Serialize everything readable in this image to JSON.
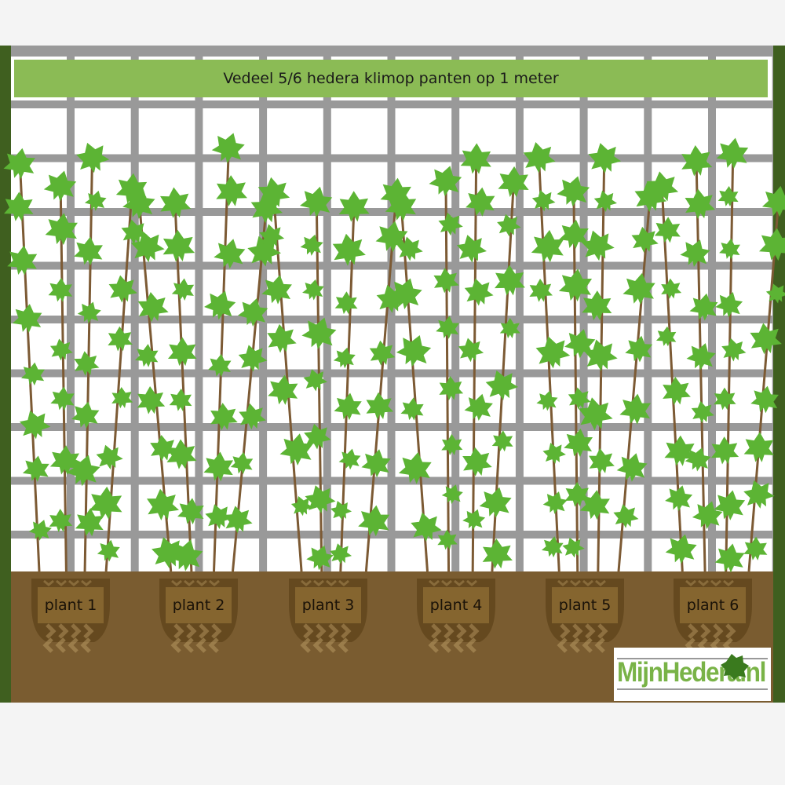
{
  "title": "Vedeel 5/6 hedera klimop panten op 1 meter",
  "plants": [
    {
      "label": "plant 1"
    },
    {
      "label": "plant 2"
    },
    {
      "label": "plant 3"
    },
    {
      "label": "plant 4"
    },
    {
      "label": "plant 5"
    },
    {
      "label": "plant 6"
    }
  ],
  "logo": {
    "text": "MijnHedera.nl"
  },
  "colors": {
    "trellis": "#999999",
    "post": "#3f5f1f",
    "soil": "#7a5c30",
    "leaf": "#5cb434",
    "stem": "#7c5a34",
    "banner": "#8bbb55",
    "pot": "#65491f"
  }
}
